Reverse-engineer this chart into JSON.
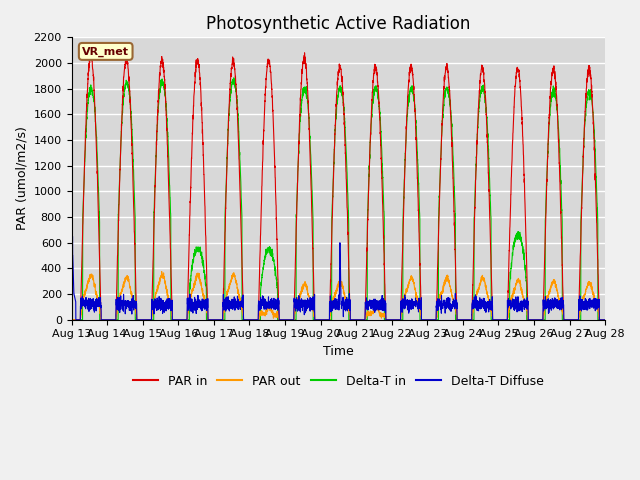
{
  "title": "Photosynthetic Active Radiation",
  "ylabel": "PAR (umol/m2/s)",
  "xlabel": "Time",
  "legend_labels": [
    "PAR in",
    "PAR out",
    "Delta-T in",
    "Delta-T Diffuse"
  ],
  "line_colors": [
    "#dd0000",
    "#ff9900",
    "#00cc00",
    "#0000cc"
  ],
  "ylim": [
    0,
    2200
  ],
  "yticks": [
    0,
    200,
    400,
    600,
    800,
    1000,
    1200,
    1400,
    1600,
    1800,
    2000,
    2200
  ],
  "xtick_labels": [
    "Aug 13",
    "Aug 14",
    "Aug 15",
    "Aug 16",
    "Aug 17",
    "Aug 18",
    "Aug 19",
    "Aug 20",
    "Aug 21",
    "Aug 22",
    "Aug 23",
    "Aug 24",
    "Aug 25",
    "Aug 26",
    "Aug 27",
    "Aug 28"
  ],
  "n_days": 15,
  "pts_per_day": 288,
  "tag_text": "VR_met",
  "tag_facecolor": "#ffffcc",
  "tag_edgecolor": "#996633",
  "plot_bg_color": "#d8d8d8",
  "fig_bg_color": "#f0f0f0",
  "title_fontsize": 12,
  "axis_label_fontsize": 9,
  "tick_fontsize": 8,
  "legend_fontsize": 9,
  "par_in_peaks": [
    2050,
    2030,
    2020,
    2020,
    2020,
    2020,
    2040,
    1970,
    1970,
    1970,
    1970,
    1960,
    1960,
    1960,
    1950
  ],
  "par_out_peaks": [
    330,
    310,
    330,
    330,
    330,
    80,
    260,
    280,
    80,
    310,
    310,
    310,
    290,
    280,
    270
  ],
  "dt_in_peaks": [
    1900,
    1950,
    1950,
    580,
    1960,
    580,
    1900,
    1900,
    1900,
    1900,
    1900,
    1900,
    700,
    1880,
    1870
  ]
}
